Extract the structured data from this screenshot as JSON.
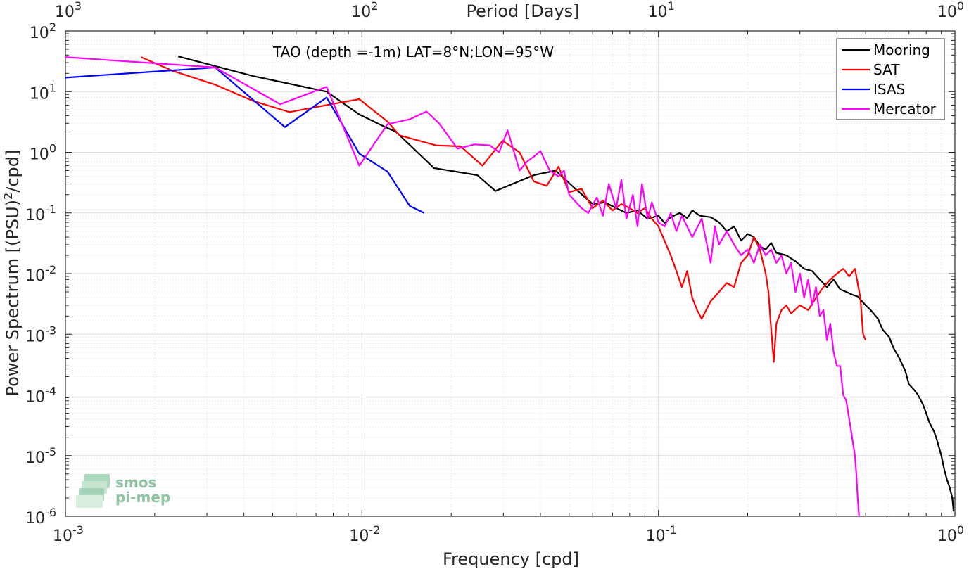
{
  "chart_data": {
    "type": "line",
    "title": "",
    "annotation": "TAO (depth =-1m) LAT=8°N;LON=95°W",
    "xlabel": "Frequency [cpd]",
    "ylabel": "Power Spectrum [(PSU)",
    "ylabel_sup": "2",
    "ylabel_tail": "/cpd]",
    "top_xlabel": "Period [Days]",
    "x_scale": "log",
    "y_scale": "log",
    "xlim": [
      0.001,
      1
    ],
    "ylim": [
      1e-06,
      100
    ],
    "grid": true,
    "legend_position": "top-right",
    "x_tick_labels": [
      {
        "base": "10",
        "exp": "-3"
      },
      {
        "base": "10",
        "exp": "-2"
      },
      {
        "base": "10",
        "exp": "-1"
      },
      {
        "base": "10",
        "exp": "0"
      }
    ],
    "top_tick_labels": [
      {
        "base": "10",
        "exp": "3"
      },
      {
        "base": "10",
        "exp": "2"
      },
      {
        "base": "10",
        "exp": "1"
      },
      {
        "base": "10",
        "exp": "0"
      }
    ],
    "y_tick_labels": [
      {
        "base": "10",
        "exp": "2"
      },
      {
        "base": "10",
        "exp": "1"
      },
      {
        "base": "10",
        "exp": "0"
      },
      {
        "base": "10",
        "exp": "-1"
      },
      {
        "base": "10",
        "exp": "-2"
      },
      {
        "base": "10",
        "exp": "-3"
      },
      {
        "base": "10",
        "exp": "-4"
      },
      {
        "base": "10",
        "exp": "-5"
      },
      {
        "base": "10",
        "exp": "-6"
      }
    ],
    "series": [
      {
        "name": "Mooring",
        "color": "#000000",
        "points": [
          [
            0.0024,
            38
          ],
          [
            0.0043,
            18
          ],
          [
            0.0076,
            10
          ],
          [
            0.0098,
            4.2
          ],
          [
            0.0122,
            2.5
          ],
          [
            0.013,
            2.2
          ],
          [
            0.0175,
            0.55
          ],
          [
            0.0245,
            0.42
          ],
          [
            0.0282,
            0.23
          ],
          [
            0.038,
            0.42
          ],
          [
            0.045,
            0.5
          ],
          [
            0.052,
            0.26
          ],
          [
            0.06,
            0.14
          ],
          [
            0.066,
            0.15
          ],
          [
            0.072,
            0.12
          ],
          [
            0.078,
            0.1
          ],
          [
            0.085,
            0.11
          ],
          [
            0.092,
            0.08
          ],
          [
            0.1,
            0.09
          ],
          [
            0.105,
            0.068
          ],
          [
            0.11,
            0.085
          ],
          [
            0.118,
            0.1
          ],
          [
            0.125,
            0.082
          ],
          [
            0.13,
            0.11
          ],
          [
            0.138,
            0.09
          ],
          [
            0.15,
            0.085
          ],
          [
            0.16,
            0.07
          ],
          [
            0.17,
            0.05
          ],
          [
            0.18,
            0.06
          ],
          [
            0.19,
            0.035
          ],
          [
            0.2,
            0.045
          ],
          [
            0.21,
            0.04
          ],
          [
            0.22,
            0.028
          ],
          [
            0.23,
            0.025
          ],
          [
            0.24,
            0.032
          ],
          [
            0.25,
            0.022
          ],
          [
            0.27,
            0.02
          ],
          [
            0.29,
            0.016
          ],
          [
            0.31,
            0.012
          ],
          [
            0.33,
            0.011
          ],
          [
            0.35,
            0.008
          ],
          [
            0.37,
            0.006
          ],
          [
            0.39,
            0.008
          ],
          [
            0.41,
            0.0055
          ],
          [
            0.43,
            0.005
          ],
          [
            0.45,
            0.0045
          ],
          [
            0.47,
            0.0042
          ],
          [
            0.5,
            0.003
          ],
          [
            0.52,
            0.0025
          ],
          [
            0.55,
            0.0018
          ],
          [
            0.57,
            0.0012
          ],
          [
            0.6,
            0.0009
          ],
          [
            0.62,
            0.0006
          ],
          [
            0.65,
            0.0004
          ],
          [
            0.68,
            0.00025
          ],
          [
            0.7,
            0.00015
          ],
          [
            0.73,
            0.00012
          ],
          [
            0.75,
            0.0001
          ],
          [
            0.78,
            7e-05
          ],
          [
            0.8,
            5e-05
          ],
          [
            0.82,
            3.5e-05
          ],
          [
            0.85,
            2.5e-05
          ],
          [
            0.87,
            1.8e-05
          ],
          [
            0.9,
            1e-05
          ],
          [
            0.92,
            6e-06
          ],
          [
            0.94,
            4e-06
          ],
          [
            0.96,
            3e-06
          ],
          [
            0.98,
            2e-06
          ],
          [
            0.99,
            1.2e-06
          ]
        ]
      },
      {
        "name": "SAT",
        "color": "#ff0000",
        "points": [
          [
            0.0018,
            37
          ],
          [
            0.0023,
            22
          ],
          [
            0.0032,
            13
          ],
          [
            0.0043,
            7
          ],
          [
            0.0057,
            4.6
          ],
          [
            0.0076,
            6
          ],
          [
            0.0098,
            7.5
          ],
          [
            0.0122,
            3.2
          ],
          [
            0.0134,
            1.9
          ],
          [
            0.0178,
            1.3
          ],
          [
            0.0215,
            1.25
          ],
          [
            0.0255,
            0.6
          ],
          [
            0.0298,
            1.55
          ],
          [
            0.034,
            1.0
          ],
          [
            0.038,
            0.33
          ],
          [
            0.042,
            0.28
          ],
          [
            0.046,
            0.58
          ],
          [
            0.05,
            0.22
          ],
          [
            0.055,
            0.25
          ],
          [
            0.06,
            0.12
          ],
          [
            0.065,
            0.16
          ],
          [
            0.07,
            0.11
          ],
          [
            0.075,
            0.14
          ],
          [
            0.08,
            0.12
          ],
          [
            0.085,
            0.1
          ],
          [
            0.09,
            0.12
          ],
          [
            0.095,
            0.08
          ],
          [
            0.1,
            0.06
          ],
          [
            0.11,
            0.02
          ],
          [
            0.115,
            0.011
          ],
          [
            0.12,
            0.006
          ],
          [
            0.125,
            0.011
          ],
          [
            0.13,
            0.004
          ],
          [
            0.135,
            0.0025
          ],
          [
            0.14,
            0.0018
          ],
          [
            0.15,
            0.0035
          ],
          [
            0.16,
            0.005
          ],
          [
            0.17,
            0.007
          ],
          [
            0.18,
            0.006
          ],
          [
            0.19,
            0.015
          ],
          [
            0.2,
            0.02
          ],
          [
            0.21,
            0.04
          ],
          [
            0.22,
            0.025
          ],
          [
            0.23,
            0.01
          ],
          [
            0.235,
            0.005
          ],
          [
            0.24,
            0.0012
          ],
          [
            0.245,
            0.00035
          ],
          [
            0.25,
            0.0015
          ],
          [
            0.26,
            0.0025
          ],
          [
            0.27,
            0.003
          ],
          [
            0.28,
            0.0022
          ],
          [
            0.3,
            0.003
          ],
          [
            0.32,
            0.0025
          ],
          [
            0.34,
            0.004
          ],
          [
            0.36,
            0.006
          ],
          [
            0.38,
            0.008
          ],
          [
            0.4,
            0.01
          ],
          [
            0.42,
            0.012
          ],
          [
            0.44,
            0.009
          ],
          [
            0.46,
            0.012
          ],
          [
            0.48,
            0.004
          ],
          [
            0.49,
            0.001
          ],
          [
            0.5,
            0.0008
          ]
        ]
      },
      {
        "name": "ISAS",
        "color": "#0000ff",
        "points": [
          [
            0.001,
            17
          ],
          [
            0.0032,
            25
          ],
          [
            0.0055,
            2.6
          ],
          [
            0.0076,
            8
          ],
          [
            0.0098,
            0.95
          ],
          [
            0.0122,
            0.48
          ],
          [
            0.0145,
            0.13
          ],
          [
            0.0162,
            0.1
          ]
        ]
      },
      {
        "name": "Mercator",
        "color": "#ff00ff",
        "points": [
          [
            0.001,
            37
          ],
          [
            0.0032,
            25
          ],
          [
            0.0053,
            6.2
          ],
          [
            0.0076,
            12
          ],
          [
            0.0098,
            0.6
          ],
          [
            0.0122,
            2.9
          ],
          [
            0.0145,
            3.5
          ],
          [
            0.0165,
            4.7
          ],
          [
            0.0182,
            3
          ],
          [
            0.021,
            1.15
          ],
          [
            0.024,
            1.35
          ],
          [
            0.027,
            1.3
          ],
          [
            0.029,
            1.0
          ],
          [
            0.031,
            2.3
          ],
          [
            0.034,
            0.5
          ],
          [
            0.036,
            0.7
          ],
          [
            0.038,
            0.85
          ],
          [
            0.04,
            1.05
          ],
          [
            0.043,
            0.5
          ],
          [
            0.046,
            0.4
          ],
          [
            0.048,
            0.5
          ],
          [
            0.05,
            0.2
          ],
          [
            0.055,
            0.12
          ],
          [
            0.058,
            0.1
          ],
          [
            0.062,
            0.18
          ],
          [
            0.065,
            0.09
          ],
          [
            0.068,
            0.3
          ],
          [
            0.072,
            0.12
          ],
          [
            0.075,
            0.35
          ],
          [
            0.078,
            0.08
          ],
          [
            0.082,
            0.2
          ],
          [
            0.085,
            0.06
          ],
          [
            0.088,
            0.3
          ],
          [
            0.092,
            0.08
          ],
          [
            0.095,
            0.15
          ],
          [
            0.1,
            0.07
          ],
          [
            0.105,
            0.06
          ],
          [
            0.11,
            0.1
          ],
          [
            0.115,
            0.05
          ],
          [
            0.12,
            0.09
          ],
          [
            0.13,
            0.04
          ],
          [
            0.14,
            0.08
          ],
          [
            0.15,
            0.015
          ],
          [
            0.155,
            0.06
          ],
          [
            0.16,
            0.03
          ],
          [
            0.17,
            0.05
          ],
          [
            0.18,
            0.03
          ],
          [
            0.19,
            0.02
          ],
          [
            0.2,
            0.025
          ],
          [
            0.21,
            0.015
          ],
          [
            0.22,
            0.03
          ],
          [
            0.23,
            0.02
          ],
          [
            0.24,
            0.025
          ],
          [
            0.25,
            0.015
          ],
          [
            0.26,
            0.02
          ],
          [
            0.27,
            0.01
          ],
          [
            0.28,
            0.015
          ],
          [
            0.29,
            0.005
          ],
          [
            0.3,
            0.01
          ],
          [
            0.31,
            0.004
          ],
          [
            0.32,
            0.008
          ],
          [
            0.33,
            0.003
          ],
          [
            0.34,
            0.006
          ],
          [
            0.35,
            0.002
          ],
          [
            0.36,
            0.0025
          ],
          [
            0.37,
            0.0008
          ],
          [
            0.38,
            0.0015
          ],
          [
            0.39,
            0.0005
          ],
          [
            0.4,
            0.0003
          ],
          [
            0.41,
            0.0003
          ],
          [
            0.42,
            0.0001
          ],
          [
            0.43,
            8e-05
          ],
          [
            0.44,
            4e-05
          ],
          [
            0.45,
            2e-05
          ],
          [
            0.46,
            1e-05
          ],
          [
            0.465,
            5e-06
          ],
          [
            0.47,
            2e-06
          ],
          [
            0.475,
            1e-06
          ]
        ]
      }
    ]
  },
  "logo": {
    "line1": "smos",
    "line2": "pi-mep"
  }
}
